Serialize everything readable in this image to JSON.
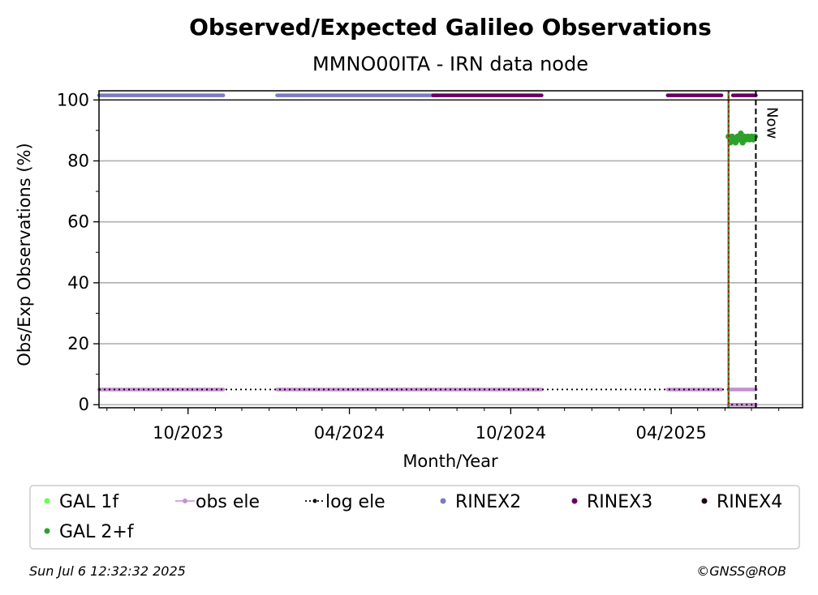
{
  "chart_data": {
    "type": "scatter",
    "title": "Observed/Expected Galileo Observations",
    "subtitle": "MMNO00ITA - IRN data node",
    "xlabel": "Month/Year",
    "ylabel": "Obs/Exp Observations (%)",
    "x_range": [
      "2023-06-22",
      "2025-08-28"
    ],
    "ylim": [
      -1,
      103
    ],
    "y_ticks": [
      0,
      20,
      40,
      60,
      80,
      100
    ],
    "x_ticks": [
      {
        "date": "2023-10-01",
        "label": "10/2023"
      },
      {
        "date": "2024-04-01",
        "label": "04/2024"
      },
      {
        "date": "2024-10-01",
        "label": "10/2024"
      },
      {
        "date": "2025-04-01",
        "label": "04/2025"
      }
    ],
    "grid": "horizontal",
    "now_label": "Now",
    "now_date": "2025-07-06",
    "colors": {
      "gal_1f": "#66ff55",
      "gal_2f": "#2ca02c",
      "obs_ele": "#c48fd0",
      "log_ele": "#000000",
      "rinex2": "#7b7bbf",
      "rinex3": "#650060",
      "rinex4": "#1c0417",
      "marker_line": "#cc0000"
    },
    "series": [
      {
        "name": "RINEX2",
        "kind": "band",
        "y": 101.5,
        "segments": [
          [
            "2023-06-22",
            "2023-11-10"
          ],
          [
            "2024-01-10",
            "2024-07-10"
          ]
        ]
      },
      {
        "name": "RINEX3",
        "kind": "band",
        "y": 101.5,
        "segments": [
          [
            "2024-07-05",
            "2024-11-05"
          ],
          [
            "2025-03-28",
            "2025-05-28"
          ],
          [
            "2025-06-10",
            "2025-07-06"
          ]
        ]
      },
      {
        "name": "obs ele",
        "kind": "band",
        "y": 5,
        "segments": [
          [
            "2023-06-22",
            "2023-11-10"
          ],
          [
            "2024-01-10",
            "2024-11-05"
          ],
          [
            "2025-03-28",
            "2025-05-28"
          ],
          [
            "2025-06-05",
            "2025-07-06"
          ]
        ]
      },
      {
        "name": "obs ele low",
        "kind": "band",
        "y": 0,
        "segments": [
          [
            "2025-06-05",
            "2025-07-06"
          ]
        ]
      },
      {
        "name": "log ele",
        "kind": "dotted",
        "y": 5,
        "points": [
          [
            "2023-06-22",
            5
          ],
          [
            "2025-06-05",
            5
          ],
          [
            "2025-06-05",
            0
          ],
          [
            "2025-07-06",
            0
          ]
        ]
      },
      {
        "name": "GAL 2+f",
        "kind": "points",
        "points": [
          [
            "2025-06-05",
            88
          ],
          [
            "2025-06-07",
            86
          ],
          [
            "2025-06-09",
            88
          ],
          [
            "2025-06-11",
            87
          ],
          [
            "2025-06-13",
            86
          ],
          [
            "2025-06-15",
            88
          ],
          [
            "2025-06-17",
            87
          ],
          [
            "2025-06-19",
            89
          ],
          [
            "2025-06-21",
            86
          ],
          [
            "2025-06-23",
            88
          ],
          [
            "2025-06-25",
            87
          ],
          [
            "2025-06-27",
            88
          ],
          [
            "2025-06-29",
            87
          ],
          [
            "2025-07-01",
            88
          ],
          [
            "2025-07-03",
            87
          ],
          [
            "2025-07-05",
            88
          ]
        ]
      }
    ],
    "vlines": [
      {
        "date": "2025-06-05",
        "style": "green-red"
      },
      {
        "date": "2025-07-06",
        "style": "dashed"
      }
    ],
    "legend": {
      "placement": "bottom",
      "items": [
        {
          "label": "GAL 1f",
          "marker": "dot",
          "color_key": "gal_1f"
        },
        {
          "label": "obs ele",
          "marker": "line-dot",
          "color_key": "obs_ele"
        },
        {
          "label": "log ele",
          "marker": "dotted-dot",
          "color_key": "log_ele"
        },
        {
          "label": "RINEX2",
          "marker": "dot",
          "color_key": "rinex2"
        },
        {
          "label": "RINEX3",
          "marker": "dot",
          "color_key": "rinex3"
        },
        {
          "label": "RINEX4",
          "marker": "dot",
          "color_key": "rinex4"
        },
        {
          "label": "GAL 2+f",
          "marker": "dot",
          "color_key": "gal_2f"
        }
      ]
    }
  },
  "footer": {
    "timestamp": "Sun Jul  6 12:32:32 2025",
    "credit": "©GNSS@ROB"
  }
}
